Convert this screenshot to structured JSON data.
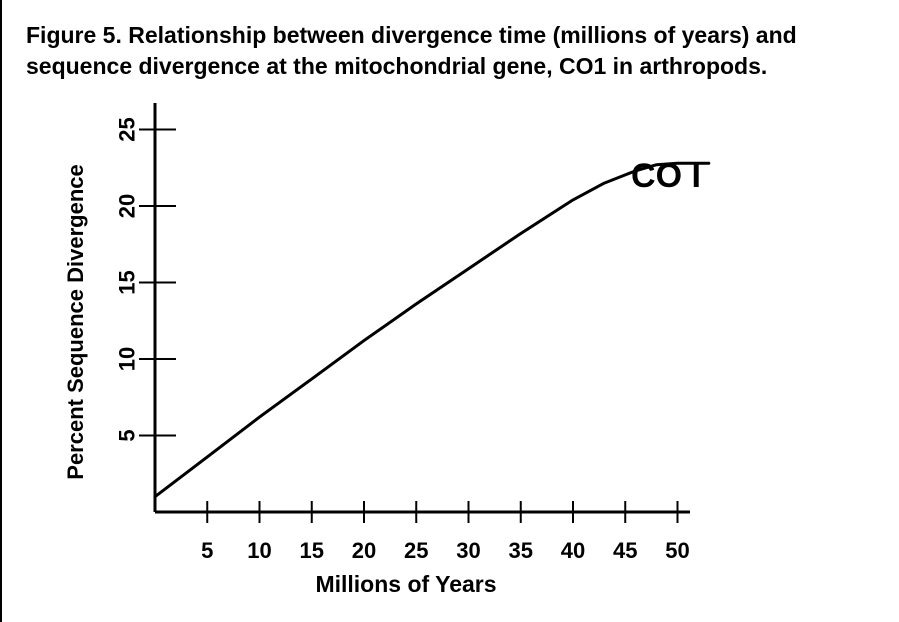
{
  "chart_data": {
    "type": "line",
    "title": "Figure 5. Relationship between divergence time (millions of years) and sequence divergence at the mitochondrial gene, CO1 in arthropods.",
    "xlabel": "Millions of Years",
    "ylabel": "Percent Sequence Divergence",
    "x_ticks": [
      5,
      10,
      15,
      20,
      25,
      30,
      35,
      40,
      45,
      50
    ],
    "y_ticks": [
      5,
      10,
      15,
      20,
      25
    ],
    "xlim": [
      0,
      55
    ],
    "ylim": [
      0,
      28
    ],
    "grid": false,
    "series": [
      {
        "name": "CO I",
        "x": [
          0,
          5,
          10,
          15,
          20,
          25,
          30,
          35,
          40,
          43,
          46,
          48,
          50,
          53
        ],
        "y": [
          1,
          3.6,
          6.2,
          8.7,
          11.2,
          13.6,
          15.9,
          18.2,
          20.4,
          21.5,
          22.3,
          22.7,
          22.8,
          22.8
        ]
      }
    ],
    "colors": {
      "axis": "#000000",
      "line": "#000000"
    }
  }
}
